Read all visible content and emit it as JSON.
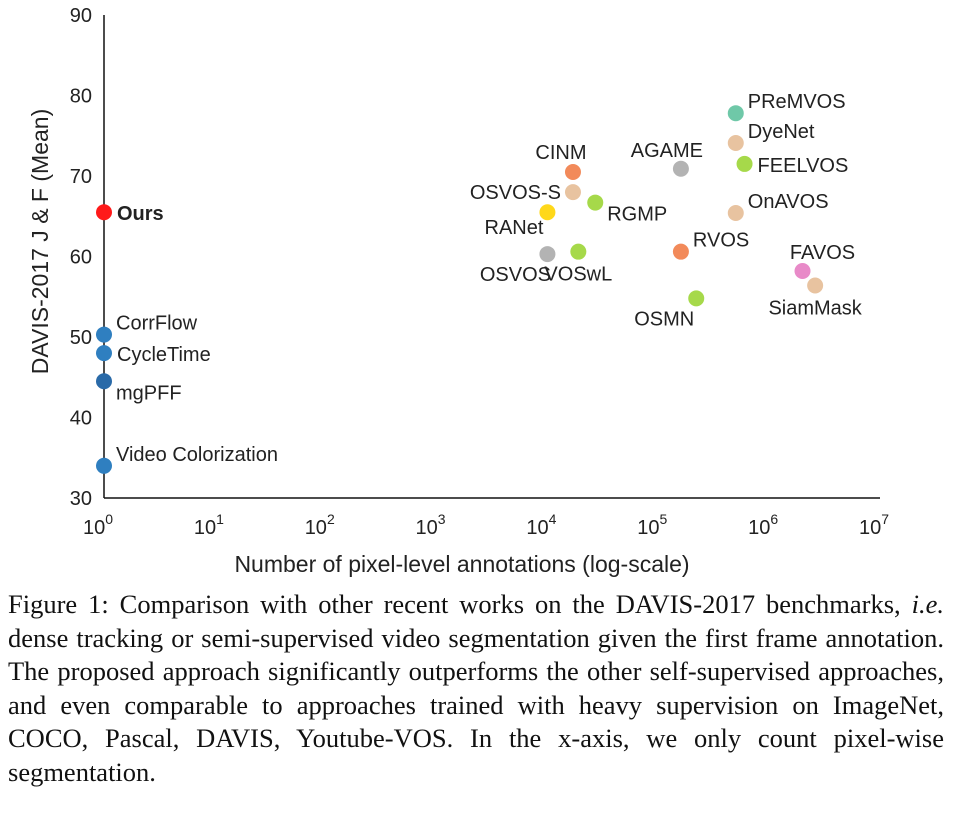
{
  "chart_data": {
    "type": "scatter",
    "title": "",
    "xlabel": "Number of pixel-level annotations (log-scale)",
    "ylabel": "DAVIS-2017 J & F (Mean)",
    "xscale": "log",
    "xlim": [
      1,
      10000000
    ],
    "ylim": [
      30,
      90
    ],
    "x_ticks": [
      {
        "base": "10",
        "exp": "0"
      },
      {
        "base": "10",
        "exp": "1"
      },
      {
        "base": "10",
        "exp": "2"
      },
      {
        "base": "10",
        "exp": "3"
      },
      {
        "base": "10",
        "exp": "4"
      },
      {
        "base": "10",
        "exp": "5"
      },
      {
        "base": "10",
        "exp": "6"
      },
      {
        "base": "10",
        "exp": "7"
      }
    ],
    "y_ticks": [
      "30",
      "40",
      "50",
      "60",
      "70",
      "80",
      "90"
    ],
    "grid": false,
    "legend": "none",
    "points": [
      {
        "label": "Ours",
        "x": 1,
        "y": 65.5,
        "color": "#ff1a1a",
        "bold": true,
        "anchor": "right"
      },
      {
        "label": "CorrFlow",
        "x": 1,
        "y": 50.3,
        "color": "#2f7fc0",
        "anchor": "right-up"
      },
      {
        "label": "CycleTime",
        "x": 1,
        "y": 48.0,
        "color": "#2f7fc0",
        "anchor": "right"
      },
      {
        "label": "mgPFF",
        "x": 1,
        "y": 44.5,
        "color": "#2a6aa8",
        "anchor": "right-down"
      },
      {
        "label": "Video Colorization",
        "x": 1,
        "y": 34.0,
        "color": "#2f7fc0",
        "anchor": "right-up"
      },
      {
        "label": "CINM",
        "x": 17000,
        "y": 70.5,
        "color": "#f28a5a",
        "anchor": "above"
      },
      {
        "label": "OSVOS-S",
        "x": 17000,
        "y": 68.0,
        "color": "#e8c3a0",
        "anchor": "left"
      },
      {
        "label": "RANet",
        "x": 10000,
        "y": 65.5,
        "color": "#ffd81a",
        "anchor": "left-down"
      },
      {
        "label": "RGMP",
        "x": 27000,
        "y": 66.7,
        "color": "#a6d94a",
        "anchor": "right-down"
      },
      {
        "label": "OSVOS",
        "x": 10000,
        "y": 60.3,
        "color": "#b3b3b3",
        "anchor": "below-left"
      },
      {
        "label": "VOSwL",
        "x": 19000,
        "y": 60.6,
        "color": "#a6d94a",
        "anchor": "below"
      },
      {
        "label": "AGAME",
        "x": 160000,
        "y": 70.9,
        "color": "#b3b3b3",
        "anchor": "above-left"
      },
      {
        "label": "RVOS",
        "x": 160000,
        "y": 60.6,
        "color": "#f28a5a",
        "anchor": "right-up"
      },
      {
        "label": "OSMN",
        "x": 220000,
        "y": 54.8,
        "color": "#a6d94a",
        "anchor": "below-left"
      },
      {
        "label": "PReMVOS",
        "x": 500000,
        "y": 77.8,
        "color": "#6fc8a8",
        "anchor": "right-up"
      },
      {
        "label": "DyeNet",
        "x": 500000,
        "y": 74.1,
        "color": "#e8c3a0",
        "anchor": "right-up"
      },
      {
        "label": "FEELVOS",
        "x": 600000,
        "y": 71.5,
        "color": "#a6d94a",
        "anchor": "right"
      },
      {
        "label": "OnAVOS",
        "x": 500000,
        "y": 65.4,
        "color": "#e8c3a0",
        "anchor": "right-up"
      },
      {
        "label": "FAVOS",
        "x": 2000000,
        "y": 58.2,
        "color": "#e88ac8",
        "anchor": "above-right"
      },
      {
        "label": "SiamMask",
        "x": 2600000,
        "y": 56.4,
        "color": "#e8c3a0",
        "anchor": "below"
      }
    ]
  },
  "caption": {
    "part1": "Figure 1: Comparison with other recent works on the DAVIS-2017 benchmarks, ",
    "italic": "i.e.",
    "part2": " dense tracking or semi-supervised video segmentation given the first frame annotation.  The proposed approach significantly outperforms the other self-supervised approaches, and even comparable to approaches trained with heavy supervision on ImageNet, COCO, Pascal, DAVIS, Youtube-VOS. In the x-axis, we only count pixel-wise segmentation."
  }
}
